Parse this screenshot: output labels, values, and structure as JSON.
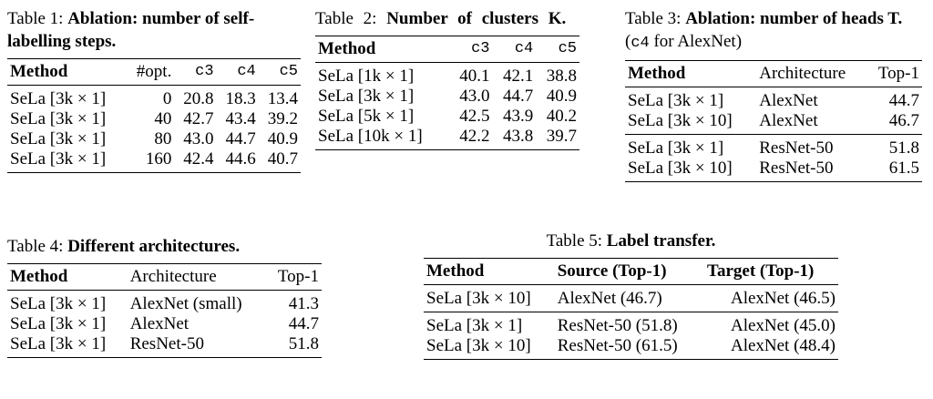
{
  "tables": [
    {
      "label": "Table 1:",
      "title": "Ablation: number of self-labelling steps.",
      "header": [
        "Method",
        "#opt.",
        "c3",
        "c4",
        "c5"
      ],
      "groups": [
        [
          [
            "SeLa [3k × 1]",
            "0",
            "20.8",
            "18.3",
            "13.4"
          ],
          [
            "SeLa [3k × 1]",
            "40",
            "42.7",
            "43.4",
            "39.2"
          ],
          [
            "SeLa [3k × 1]",
            "80",
            "43.0",
            "44.7",
            "40.9"
          ],
          [
            "SeLa [3k × 1]",
            "160",
            "42.4",
            "44.6",
            "40.7"
          ]
        ]
      ]
    },
    {
      "label": "Table 2:",
      "title": "Number of clusters K.",
      "header": [
        "Method",
        "c3",
        "c4",
        "c5"
      ],
      "groups": [
        [
          [
            "SeLa [1k × 1]",
            "40.1",
            "42.1",
            "38.8"
          ],
          [
            "SeLa [3k × 1]",
            "43.0",
            "44.7",
            "40.9"
          ],
          [
            "SeLa [5k × 1]",
            "42.5",
            "43.9",
            "40.2"
          ],
          [
            "SeLa [10k × 1]",
            "42.2",
            "43.8",
            "39.7"
          ]
        ]
      ]
    },
    {
      "label": "Table 3:",
      "title": "Ablation: number of heads T.",
      "note_open": "(",
      "note_code": "c4",
      "note_close": "for AlexNet)",
      "header": [
        "Method",
        "Architecture",
        "Top-1"
      ],
      "groups": [
        [
          [
            "SeLa [3k × 1]",
            "AlexNet",
            "44.7"
          ],
          [
            "SeLa [3k × 10]",
            "AlexNet",
            "46.7"
          ]
        ],
        [
          [
            "SeLa [3k × 1]",
            "ResNet-50",
            "51.8"
          ],
          [
            "SeLa [3k × 10]",
            "ResNet-50",
            "61.5"
          ]
        ]
      ]
    },
    {
      "label": "Table 4:",
      "title": "Different architectures.",
      "header": [
        "Method",
        "Architecture",
        "Top-1"
      ],
      "groups": [
        [
          [
            "SeLa [3k × 1]",
            "AlexNet (small)",
            "41.3"
          ],
          [
            "SeLa [3k × 1]",
            "AlexNet",
            "44.7"
          ],
          [
            "SeLa [3k × 1]",
            "ResNet-50",
            "51.8"
          ]
        ]
      ]
    },
    {
      "label": "Table 5:",
      "title": "Label transfer.",
      "header": [
        "Method",
        "Source (Top-1)",
        "Target (Top-1)"
      ],
      "groups": [
        [
          [
            "SeLa [3k × 10]",
            "AlexNet (46.7)",
            "AlexNet (46.5)"
          ]
        ],
        [
          [
            "SeLa [3k × 1]",
            "ResNet-50 (51.8)",
            "AlexNet (45.0)"
          ],
          [
            "SeLa [3k × 10]",
            "ResNet-50 (61.5)",
            "AlexNet (48.4)"
          ]
        ]
      ]
    }
  ]
}
